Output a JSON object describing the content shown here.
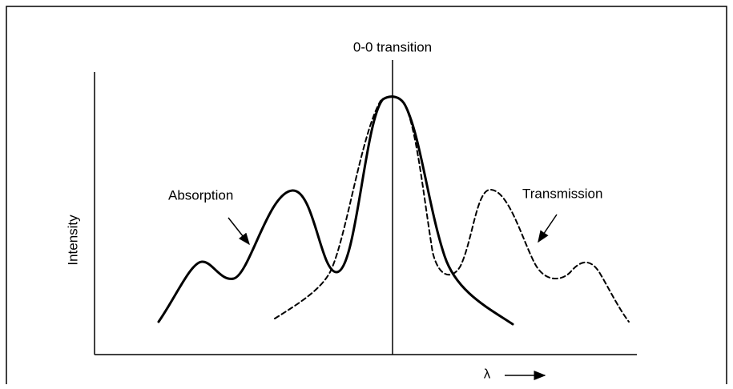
{
  "top_label": "0-0 transition",
  "absorption_label": "Absorption",
  "transmission_label": "Transmission",
  "y_axis_label": "Intensity",
  "x_axis_label": "λ"
}
